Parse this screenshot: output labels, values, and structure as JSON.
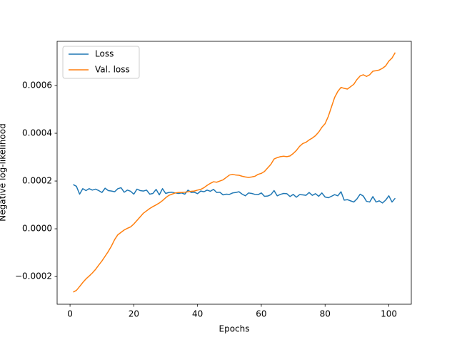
{
  "chart_data": {
    "type": "line",
    "xlabel": "Epochs",
    "ylabel": "Negative log-likelihood",
    "x": [
      1,
      2,
      3,
      4,
      5,
      6,
      7,
      8,
      9,
      10,
      11,
      12,
      13,
      14,
      15,
      16,
      17,
      18,
      19,
      20,
      21,
      22,
      23,
      24,
      25,
      26,
      27,
      28,
      29,
      30,
      31,
      32,
      33,
      34,
      35,
      36,
      37,
      38,
      39,
      40,
      41,
      42,
      43,
      44,
      45,
      46,
      47,
      48,
      49,
      50,
      51,
      52,
      53,
      54,
      55,
      56,
      57,
      58,
      59,
      60,
      61,
      62,
      63,
      64,
      65,
      66,
      67,
      68,
      69,
      70,
      71,
      72,
      73,
      74,
      75,
      76,
      77,
      78,
      79,
      80,
      81,
      82,
      83,
      84,
      85,
      86,
      87,
      88,
      89,
      90,
      91,
      92,
      93,
      94,
      95,
      96,
      97,
      98,
      99,
      100,
      101,
      102
    ],
    "series": [
      {
        "name": "Loss",
        "color": "#1f77b4",
        "values": [
          0.000185,
          0.000178,
          0.000145,
          0.000168,
          0.00016,
          0.000168,
          0.000162,
          0.000166,
          0.00016,
          0.000152,
          0.00017,
          0.00016,
          0.000158,
          0.000155,
          0.000168,
          0.000172,
          0.000153,
          0.000162,
          0.000157,
          0.000145,
          0.000166,
          0.00016,
          0.000158,
          0.000162,
          0.000145,
          0.000148,
          0.000165,
          0.000142,
          0.000168,
          0.000148,
          0.000152,
          0.000153,
          0.00015,
          0.000148,
          0.00015,
          0.000145,
          0.000162,
          0.000152,
          0.000153,
          0.000147,
          0.000158,
          0.000155,
          0.000162,
          0.000157,
          0.000165,
          0.000152,
          0.000153,
          0.000142,
          0.000145,
          0.000144,
          0.00015,
          0.000152,
          0.000155,
          0.000145,
          0.000138,
          0.00015,
          0.000148,
          0.000144,
          0.000143,
          0.00015,
          0.000136,
          0.000137,
          0.000143,
          0.00016,
          0.000138,
          0.000144,
          0.000148,
          0.000147,
          0.000135,
          0.000144,
          0.000132,
          0.000143,
          0.000142,
          0.00014,
          0.000152,
          0.00014,
          0.000147,
          0.000136,
          0.00015,
          0.000133,
          0.00013,
          0.000136,
          0.000143,
          0.000138,
          0.000155,
          0.00012,
          0.000122,
          0.000117,
          0.000112,
          0.000125,
          0.000145,
          0.000137,
          0.000115,
          0.000112,
          0.000135,
          0.000112,
          0.000117,
          0.000108,
          0.00012,
          0.000138,
          0.000112,
          0.000128
        ]
      },
      {
        "name": "Val. loss",
        "color": "#ff7f0e",
        "values": [
          -0.000265,
          -0.000258,
          -0.000242,
          -0.000225,
          -0.00021,
          -0.000198,
          -0.000185,
          -0.00017,
          -0.000152,
          -0.000135,
          -0.000115,
          -9.5e-05,
          -7.2e-05,
          -4.5e-05,
          -2.5e-05,
          -1.5e-05,
          -5e-06,
          2e-06,
          8e-06,
          2e-05,
          3.5e-05,
          5e-05,
          6.5e-05,
          7.5e-05,
          8.5e-05,
          9.3e-05,
          0.0001,
          0.000108,
          0.000118,
          0.00013,
          0.00014,
          0.000145,
          0.00015,
          0.000152,
          0.000152,
          0.000153,
          0.000155,
          0.000157,
          0.000158,
          0.000162,
          0.000165,
          0.000172,
          0.000182,
          0.00019,
          0.000197,
          0.000195,
          0.0002,
          0.000205,
          0.000215,
          0.000225,
          0.000228,
          0.000225,
          0.000224,
          0.00022,
          0.000217,
          0.000215,
          0.000217,
          0.00022,
          0.000228,
          0.000232,
          0.00024,
          0.000255,
          0.00027,
          0.000292,
          0.000298,
          0.000302,
          0.000304,
          0.000302,
          0.000305,
          0.000315,
          0.000328,
          0.000345,
          0.000357,
          0.000362,
          0.000372,
          0.00038,
          0.00039,
          0.000405,
          0.000425,
          0.00044,
          0.00047,
          0.00051,
          0.00055,
          0.000575,
          0.000592,
          0.000588,
          0.000585,
          0.000595,
          0.000605,
          0.000625,
          0.00064,
          0.000645,
          0.000638,
          0.000645,
          0.00066,
          0.000662,
          0.000665,
          0.000672,
          0.000682,
          0.000702,
          0.000715,
          0.000738
        ]
      }
    ],
    "xlim": [
      -4.05,
      107.05
    ],
    "xticks": [
      0,
      20,
      40,
      60,
      80,
      100
    ],
    "ylim": [
      -0.000316,
      0.000785
    ],
    "yticks": [
      {
        "value": -0.0002,
        "label": "−0.0002"
      },
      {
        "value": 0,
        "label": "0.0000"
      },
      0.0002,
      0.0004,
      0.0006
    ],
    "legend": "upper left"
  }
}
